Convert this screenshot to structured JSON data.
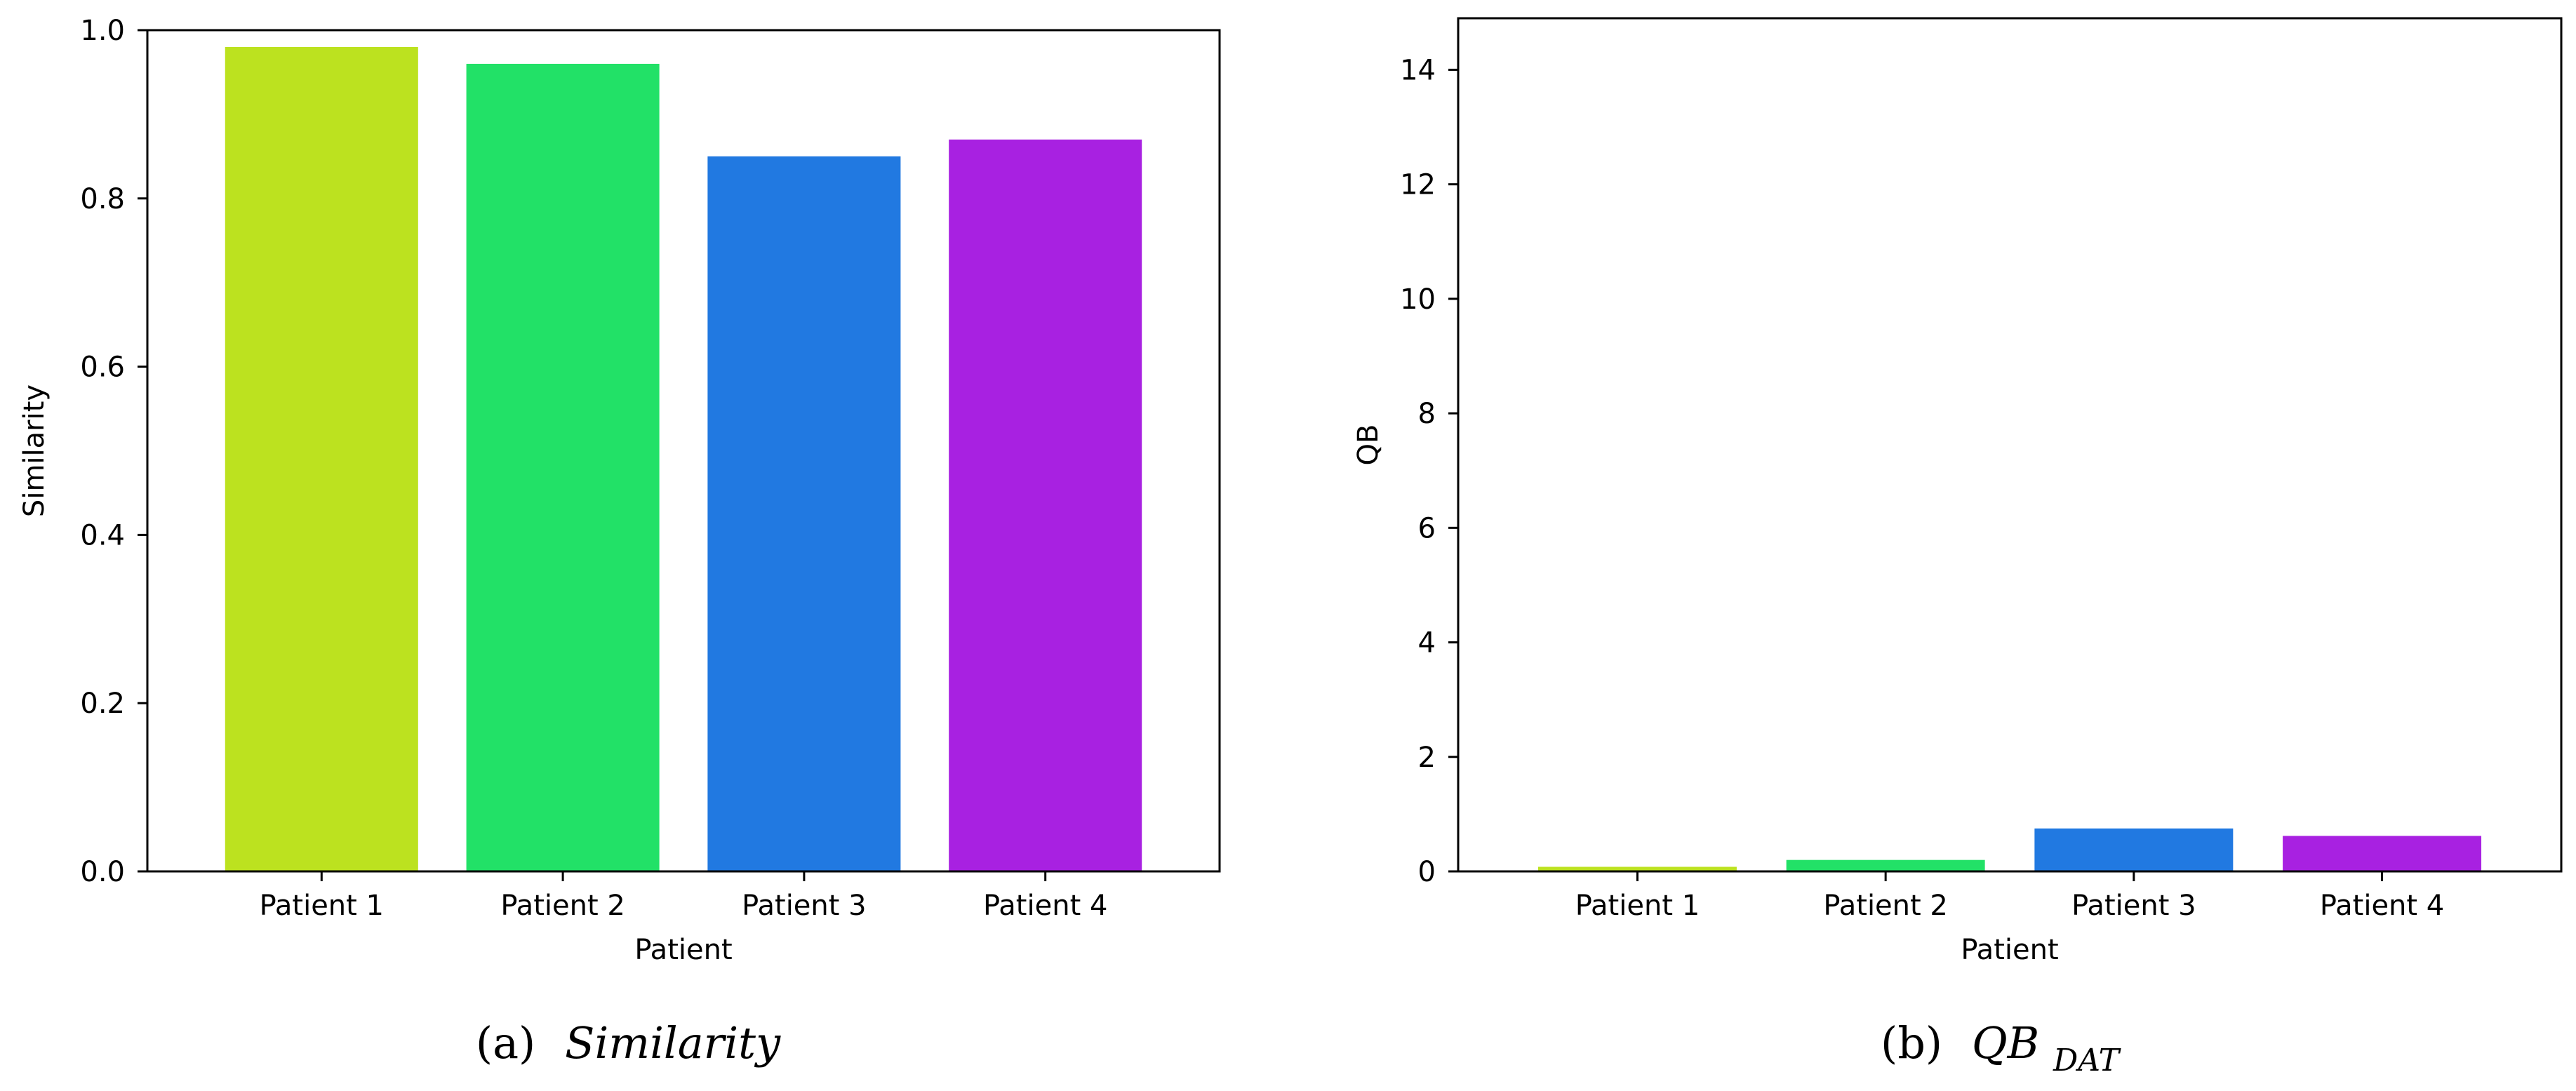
{
  "chart_data": [
    {
      "type": "bar",
      "categories": [
        "Patient 1",
        "Patient 2",
        "Patient 3",
        "Patient 4"
      ],
      "values": [
        0.98,
        0.96,
        0.85,
        0.87
      ],
      "colors": [
        "#bce21f",
        "#22e167",
        "#2179e1",
        "#a821e1"
      ],
      "xlabel": "Patient",
      "ylabel": "Similarity",
      "ylim": [
        0,
        1.0
      ],
      "yticks": [
        0.0,
        0.2,
        0.4,
        0.6,
        0.8,
        1.0
      ],
      "ytick_labels": [
        "0.0",
        "0.2",
        "0.4",
        "0.6",
        "0.8",
        "1.0"
      ],
      "caption_prefix": "(a)",
      "caption_text": "Similarity"
    },
    {
      "type": "bar",
      "categories": [
        "Patient 1",
        "Patient 2",
        "Patient 3",
        "Patient 4"
      ],
      "values": [
        0.08,
        0.2,
        0.75,
        0.62
      ],
      "colors": [
        "#bce21f",
        "#22e167",
        "#2179e1",
        "#a821e1"
      ],
      "xlabel": "Patient",
      "ylabel": "QB",
      "ylim": [
        0,
        14.9
      ],
      "yticks": [
        0,
        2,
        4,
        6,
        8,
        10,
        12,
        14
      ],
      "ytick_labels": [
        "0",
        "2",
        "4",
        "6",
        "8",
        "10",
        "12",
        "14"
      ],
      "caption_prefix": "(b)",
      "caption_text": "QB",
      "caption_subscript": "DAT"
    }
  ]
}
